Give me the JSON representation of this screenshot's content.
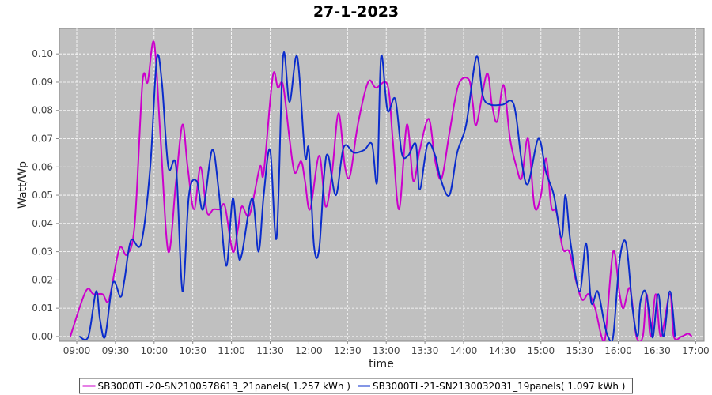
{
  "chart_data": {
    "type": "line",
    "title": "27-1-2023",
    "xlabel": "time",
    "ylabel": "Watt/Wp",
    "xlim": [
      526.5,
      1026.5
    ],
    "xticks": [
      {
        "value": 540,
        "label": "09:00"
      },
      {
        "value": 570,
        "label": "09:30"
      },
      {
        "value": 600,
        "label": "10:00"
      },
      {
        "value": 630,
        "label": "10:30"
      },
      {
        "value": 660,
        "label": "11:00"
      },
      {
        "value": 690,
        "label": "11:30"
      },
      {
        "value": 720,
        "label": "12:00"
      },
      {
        "value": 750,
        "label": "12:30"
      },
      {
        "value": 780,
        "label": "13:00"
      },
      {
        "value": 810,
        "label": "13:30"
      },
      {
        "value": 840,
        "label": "14:00"
      },
      {
        "value": 870,
        "label": "14:30"
      },
      {
        "value": 900,
        "label": "15:00"
      },
      {
        "value": 930,
        "label": "15:30"
      },
      {
        "value": 960,
        "label": "16:00"
      },
      {
        "value": 990,
        "label": "16:30"
      },
      {
        "value": 1020,
        "label": "17:00"
      }
    ],
    "ylim": [
      -0.0017,
      0.109
    ],
    "yticks": [
      {
        "value": 0,
        "label": "0.00"
      },
      0.01,
      0.02,
      0.03,
      0.04,
      0.05,
      0.06,
      0.07,
      0.08,
      0.09,
      {
        "value": 0.1,
        "label": "0.10"
      }
    ],
    "grid": true,
    "legend": "bottom",
    "series": [
      {
        "name": "SB3000TL-20-SN2100578613_21panels( 1.257 kWh )",
        "color": "#cc00cc",
        "x": [
          535,
          547,
          553,
          560,
          565,
          573,
          579,
          585,
          591,
          595,
          600,
          605,
          611,
          617,
          622,
          626,
          631,
          636,
          641,
          646,
          651,
          655,
          661,
          665,
          668,
          674,
          682,
          685,
          692,
          696,
          700,
          705,
          709,
          714,
          717,
          721,
          728,
          733,
          738,
          743,
          748,
          752,
          758,
          766,
          772,
          781,
          785,
          790,
          796,
          801,
          806,
          813,
          818,
          823,
          829,
          836,
          844,
          847,
          850,
          858,
          862,
          866,
          871,
          876,
          881,
          885,
          890,
          895,
          900,
          904,
          908,
          912,
          917,
          922,
          927,
          932,
          937,
          942,
          947,
          950,
          956,
          961,
          964,
          969,
          974,
          979,
          982,
          985,
          989,
          993,
          1000,
          1003,
          1009,
          1014,
          1017
        ],
        "values": [
          0,
          0.016,
          0.015,
          0.015,
          0.013,
          0.031,
          0.029,
          0.04,
          0.09,
          0.09,
          0.104,
          0.07,
          0.03,
          0.055,
          0.075,
          0.06,
          0.045,
          0.06,
          0.044,
          0.045,
          0.045,
          0.046,
          0.03,
          0.038,
          0.046,
          0.043,
          0.06,
          0.058,
          0.092,
          0.088,
          0.089,
          0.07,
          0.058,
          0.062,
          0.055,
          0.045,
          0.064,
          0.046,
          0.058,
          0.079,
          0.06,
          0.057,
          0.075,
          0.09,
          0.088,
          0.089,
          0.07,
          0.045,
          0.075,
          0.055,
          0.066,
          0.077,
          0.062,
          0.056,
          0.072,
          0.089,
          0.091,
          0.083,
          0.075,
          0.093,
          0.082,
          0.076,
          0.089,
          0.07,
          0.06,
          0.056,
          0.07,
          0.046,
          0.05,
          0.063,
          0.046,
          0.044,
          0.031,
          0.03,
          0.02,
          0.013,
          0.015,
          0.01,
          0,
          0,
          0.03,
          0.015,
          0.01,
          0.017,
          0,
          0,
          0.015,
          0,
          0.015,
          0,
          0.015,
          0,
          0,
          0.001,
          0
        ]
      },
      {
        "name": "SB3000TL-21-SN2130032031_19panels( 1.097 kWh )",
        "color": "#0a2ccc",
        "x": [
          542,
          549,
          555,
          558,
          562,
          568,
          574,
          577,
          582,
          590,
          597,
          602,
          606,
          611,
          617,
          622,
          627,
          633,
          638,
          645,
          650,
          656,
          661,
          665,
          668,
          676,
          681,
          685,
          690,
          695,
          700,
          705,
          711,
          717,
          720,
          724,
          728,
          732,
          735,
          741,
          747,
          755,
          763,
          769,
          773,
          776,
          781,
          787,
          792,
          797,
          803,
          806,
          812,
          818,
          822,
          829,
          835,
          842,
          850,
          855,
          861,
          870,
          879,
          885,
          890,
          898,
          904,
          910,
          916,
          919,
          923,
          930,
          935,
          939,
          944,
          949,
          952,
          956,
          961,
          966,
          971,
          975,
          977,
          981,
          985,
          987,
          991,
          995,
          1000,
          1004
        ],
        "values": [
          0,
          0,
          0.016,
          0.006,
          0,
          0.019,
          0.014,
          0.02,
          0.034,
          0.033,
          0.06,
          0.098,
          0.09,
          0.06,
          0.06,
          0.016,
          0.05,
          0.055,
          0.045,
          0.066,
          0.052,
          0.025,
          0.049,
          0.03,
          0.029,
          0.049,
          0.03,
          0.05,
          0.066,
          0.035,
          0.099,
          0.083,
          0.099,
          0.064,
          0.066,
          0.032,
          0.031,
          0.058,
          0.064,
          0.05,
          0.067,
          0.065,
          0.066,
          0.068,
          0.055,
          0.099,
          0.08,
          0.084,
          0.065,
          0.064,
          0.068,
          0.052,
          0.068,
          0.064,
          0.056,
          0.05,
          0.065,
          0.075,
          0.099,
          0.085,
          0.082,
          0.082,
          0.082,
          0.062,
          0.054,
          0.07,
          0.058,
          0.05,
          0.035,
          0.05,
          0.033,
          0.016,
          0.033,
          0.012,
          0.016,
          0.005,
          0,
          0,
          0.027,
          0.033,
          0.01,
          0,
          0.012,
          0.016,
          0.005,
          0,
          0.015,
          0,
          0.016,
          0
        ]
      }
    ]
  }
}
